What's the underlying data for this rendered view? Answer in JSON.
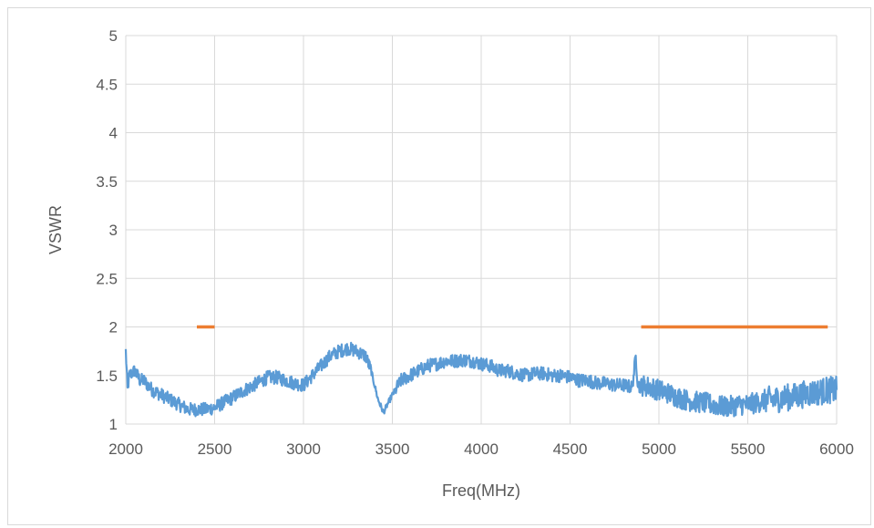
{
  "chart_data": {
    "type": "line",
    "title": "",
    "xlabel": "Freq(MHz)",
    "ylabel": "VSWR",
    "xlim": [
      2000,
      6000
    ],
    "ylim": [
      1,
      5
    ],
    "xticks": [
      2000,
      2500,
      3000,
      3500,
      4000,
      4500,
      5000,
      5500,
      6000
    ],
    "yticks": [
      1,
      1.5,
      2,
      2.5,
      3,
      3.5,
      4,
      4.5,
      5
    ],
    "ytick_labels": [
      "1",
      "1.5",
      "2",
      "2.5",
      "3",
      "3.5",
      "4",
      "4.5",
      "5"
    ],
    "grid": "vertical and horizontal major gridlines",
    "legend": "none",
    "series": [
      {
        "color": "#5b9bd5",
        "noisy": true,
        "x": [
          2000,
          2010,
          2020,
          2050,
          2080,
          2100,
          2150,
          2200,
          2250,
          2300,
          2350,
          2400,
          2450,
          2500,
          2550,
          2600,
          2650,
          2700,
          2750,
          2800,
          2850,
          2900,
          2950,
          3000,
          3050,
          3100,
          3150,
          3200,
          3250,
          3300,
          3350,
          3380,
          3400,
          3420,
          3450,
          3500,
          3550,
          3600,
          3650,
          3700,
          3750,
          3800,
          3850,
          3900,
          3950,
          4000,
          4050,
          4100,
          4150,
          4200,
          4250,
          4300,
          4350,
          4400,
          4450,
          4500,
          4550,
          4600,
          4650,
          4700,
          4750,
          4800,
          4850,
          4870,
          4880,
          4890,
          4900,
          4950,
          5000,
          5050,
          5100,
          5150,
          5200,
          5250,
          5300,
          5350,
          5400,
          5450,
          5500,
          5550,
          5600,
          5650,
          5700,
          5750,
          5800,
          5850,
          5900,
          5950,
          6000
        ],
        "y": [
          1.75,
          1.35,
          1.5,
          1.55,
          1.45,
          1.45,
          1.35,
          1.3,
          1.25,
          1.2,
          1.15,
          1.15,
          1.15,
          1.17,
          1.22,
          1.27,
          1.33,
          1.38,
          1.43,
          1.48,
          1.48,
          1.45,
          1.42,
          1.4,
          1.5,
          1.6,
          1.7,
          1.75,
          1.78,
          1.75,
          1.7,
          1.55,
          1.4,
          1.25,
          1.12,
          1.3,
          1.45,
          1.5,
          1.55,
          1.6,
          1.62,
          1.65,
          1.65,
          1.66,
          1.65,
          1.62,
          1.6,
          1.55,
          1.55,
          1.52,
          1.5,
          1.52,
          1.52,
          1.5,
          1.5,
          1.48,
          1.45,
          1.45,
          1.42,
          1.42,
          1.4,
          1.4,
          1.38,
          1.7,
          1.45,
          1.38,
          1.4,
          1.38,
          1.35,
          1.32,
          1.28,
          1.25,
          1.23,
          1.22,
          1.2,
          1.18,
          1.18,
          1.2,
          1.2,
          1.22,
          1.25,
          1.25,
          1.27,
          1.28,
          1.3,
          1.32,
          1.33,
          1.35,
          1.35
        ]
      },
      {
        "color": "#ed7d31",
        "segments": [
          {
            "x": [
              2400,
              2500
            ],
            "y": [
              2,
              2
            ]
          },
          {
            "x": [
              4900,
              5950
            ],
            "y": [
              2,
              2
            ]
          }
        ]
      }
    ]
  }
}
